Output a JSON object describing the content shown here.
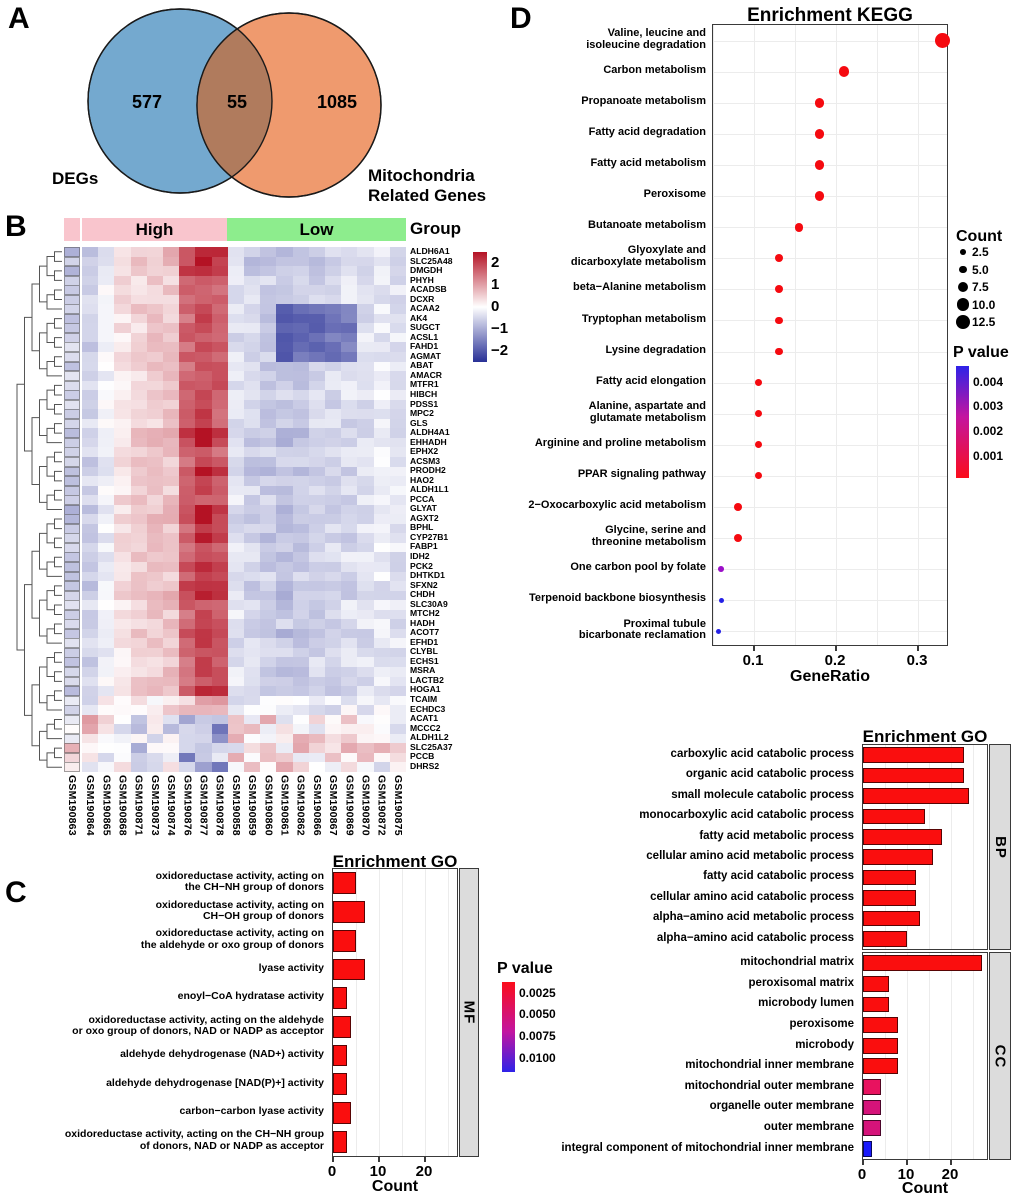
{
  "panel_letters": {
    "a": "A",
    "b": "B",
    "c": "C",
    "d": "D"
  },
  "chart_data": [
    {
      "type": "venn",
      "left_label": "DEGs",
      "right_label": "Mitochondria\nRelated Genes",
      "left_value": "577",
      "overlap_value": "55",
      "right_value": "1085",
      "left_color": "#74A9CF",
      "right_color": "#EF9A6E",
      "overlap_color": "#B07B5D",
      "outline_color": "#1a1a1a"
    },
    {
      "type": "heatmap",
      "group_label": "Group",
      "groups": [
        {
          "name": "High",
          "color": "#F9C5CD",
          "n": 10
        },
        {
          "name": "Low",
          "color": "#8DED8D",
          "n": 11
        }
      ],
      "samples": [
        "GSM190863",
        "GSM190864",
        "GSM190865",
        "GSM190868",
        "GSM190871",
        "GSM190873",
        "GSM190874",
        "GSM190876",
        "GSM190877",
        "GSM190878",
        "GSM190858",
        "GSM190859",
        "GSM190860",
        "GSM190861",
        "GSM190862",
        "GSM190866",
        "GSM190867",
        "GSM190869",
        "GSM190870",
        "GSM190872",
        "GSM190875"
      ],
      "genes": [
        {
          "name": "ALDH6A1",
          "profile": "s"
        },
        {
          "name": "SLC25A48",
          "profile": "s"
        },
        {
          "name": "DMGDH",
          "profile": "s"
        },
        {
          "name": "PHYH",
          "profile": "u"
        },
        {
          "name": "ACADSB",
          "profile": "u"
        },
        {
          "name": "DCXR",
          "profile": "u"
        },
        {
          "name": "ACAA2",
          "profile": "p"
        },
        {
          "name": "AK4",
          "profile": "p"
        },
        {
          "name": "SUGCT",
          "profile": "p"
        },
        {
          "name": "ACSL1",
          "profile": "p"
        },
        {
          "name": "FAHD1",
          "profile": "p"
        },
        {
          "name": "AGMAT",
          "profile": "p"
        },
        {
          "name": "ABAT",
          "profile": "u"
        },
        {
          "name": "AMACR",
          "profile": "u"
        },
        {
          "name": "MTFR1",
          "profile": "u"
        },
        {
          "name": "HIBCH",
          "profile": "u"
        },
        {
          "name": "PDSS1",
          "profile": "u"
        },
        {
          "name": "MPC2",
          "profile": "u"
        },
        {
          "name": "GLS",
          "profile": "u"
        },
        {
          "name": "ALDH4A1",
          "profile": "s"
        },
        {
          "name": "EHHADH",
          "profile": "s"
        },
        {
          "name": "EPHX2",
          "profile": "u"
        },
        {
          "name": "ACSM3",
          "profile": "u"
        },
        {
          "name": "PRODH2",
          "profile": "s"
        },
        {
          "name": "HAO2",
          "profile": "u"
        },
        {
          "name": "ALDH1L1",
          "profile": "u"
        },
        {
          "name": "PCCA",
          "profile": "u"
        },
        {
          "name": "GLYAT",
          "profile": "s"
        },
        {
          "name": "AGXT2",
          "profile": "s"
        },
        {
          "name": "BPHL",
          "profile": "u"
        },
        {
          "name": "CYP27B1",
          "profile": "s"
        },
        {
          "name": "FABP1",
          "profile": "u"
        },
        {
          "name": "IDH2",
          "profile": "u"
        },
        {
          "name": "PCK2",
          "profile": "s"
        },
        {
          "name": "DHTKD1",
          "profile": "u"
        },
        {
          "name": "SFXN2",
          "profile": "s"
        },
        {
          "name": "CHDH",
          "profile": "s"
        },
        {
          "name": "SLC30A9",
          "profile": "u"
        },
        {
          "name": "MTCH2",
          "profile": "u"
        },
        {
          "name": "HADH",
          "profile": "u"
        },
        {
          "name": "ACOT7",
          "profile": "s"
        },
        {
          "name": "EFHD1",
          "profile": "u"
        },
        {
          "name": "CLYBL",
          "profile": "u"
        },
        {
          "name": "ECHS1",
          "profile": "u"
        },
        {
          "name": "MSRA",
          "profile": "u"
        },
        {
          "name": "LACTB2",
          "profile": "u"
        },
        {
          "name": "HOGA1",
          "profile": "s"
        },
        {
          "name": "TCAIM",
          "profile": "m"
        },
        {
          "name": "ECHDC3",
          "profile": "m"
        },
        {
          "name": "ACAT1",
          "profile": "i"
        },
        {
          "name": "MCCC2",
          "profile": "i"
        },
        {
          "name": "ALDH1L2",
          "profile": "i"
        },
        {
          "name": "SLC25A37",
          "profile": "i"
        },
        {
          "name": "PCCB",
          "profile": "i"
        },
        {
          "name": "DHRS2",
          "profile": "i"
        }
      ],
      "render_params": {
        "col_pattern": [
          -0.55,
          -0.5,
          -0.15,
          0.3,
          0.45,
          0.5,
          0.55,
          1.5,
          1.8,
          1.6,
          -0.35,
          -0.5,
          -0.55,
          -0.6,
          -0.55,
          -0.5,
          -0.45,
          -0.4,
          -0.35,
          -0.25,
          -0.3
        ],
        "profile_amp": {
          "u": 1.0,
          "s": 1.25,
          "p": 1.0,
          "m": 0.45,
          "i": -0.6
        },
        "profile_noise": {
          "u": 0.5,
          "s": 0.45,
          "p": 0.5,
          "m": 0.75,
          "i": 1.5
        },
        "patch_cols": [
          13,
          17
        ],
        "patch_delta": -1.15
      },
      "color_scale": {
        "pos_color": "#B41224",
        "neg_color": "#283096",
        "ticks": [
          "2",
          "1",
          "0",
          "−1",
          "−2"
        ]
      }
    },
    {
      "type": "bar",
      "title": "Enrichment GO",
      "facet": "MF",
      "xlabel": "Count",
      "x_ticks": [
        "0",
        "10",
        "20"
      ],
      "xlim": [
        0,
        27.4
      ],
      "categories": [
        "oxidoreductase activity, acting on\nthe CH−NH group of donors",
        "oxidoreductase activity, acting on\nCH−OH group of donors",
        "oxidoreductase activity, acting on\nthe aldehyde or oxo group of donors",
        "lyase activity",
        "enoyl−CoA hydratase activity",
        "oxidoreductase activity, acting on the aldehyde\nor oxo group of donors, NAD or NADP as acceptor",
        "aldehyde dehydrogenase (NAD+) activity",
        "aldehyde dehydrogenase [NAD(P)+] activity",
        "carbon−carbon lyase activity",
        "oxidoreductase activity, acting on the CH−NH group\nof donors, NAD or NADP as acceptor"
      ],
      "values": [
        5,
        7,
        5,
        7,
        3,
        4,
        3,
        3,
        4,
        3
      ],
      "bar_color": "#FA0E0E",
      "legend": {
        "title": "P value",
        "ticks": [
          "0.0025",
          "0.0050",
          "0.0075",
          "0.0100"
        ],
        "gradient_top": "#FB0D1B",
        "gradient_mid": "#C315A0",
        "gradient_bottom": "#2E22E8"
      }
    },
    {
      "type": "dot",
      "title": "Enrichment KEGG",
      "xlabel": "GeneRatio",
      "x_ticks": [
        "0.1",
        "0.2",
        "0.3"
      ],
      "xlim": [
        0.045,
        0.345
      ],
      "categories": [
        "Valine, leucine and\nisoleucine degradation",
        "Carbon metabolism",
        "Propanoate metabolism",
        "Fatty acid degradation",
        "Fatty acid metabolism",
        "Peroxisome",
        "Butanoate metabolism",
        "Glyoxylate and\ndicarboxylate metabolism",
        "beta−Alanine metabolism",
        "Tryptophan metabolism",
        "Lysine degradation",
        "Fatty acid elongation",
        "Alanine, aspartate and\nglutamate metabolism",
        "Arginine and proline metabolism",
        "PPAR signaling pathway",
        "2−Oxocarboxylic acid metabolism",
        "Glycine, serine and\nthreonine metabolism",
        "One carbon pool by folate",
        "Terpenoid backbone biosynthesis",
        "Proximal tubule\nbicarbonate reclamation"
      ],
      "gene_ratio": [
        0.33,
        0.21,
        0.18,
        0.18,
        0.18,
        0.18,
        0.155,
        0.13,
        0.13,
        0.13,
        0.13,
        0.105,
        0.105,
        0.105,
        0.105,
        0.08,
        0.08,
        0.06,
        0.06,
        0.057
      ],
      "count": [
        13,
        8,
        7,
        7,
        7,
        7,
        6,
        5,
        5,
        5,
        5,
        4,
        4,
        4,
        4,
        5,
        5,
        2.5,
        2,
        2
      ],
      "dot_colors": [
        "#F50A10",
        "#F50A10",
        "#F50A10",
        "#F50A10",
        "#F50A10",
        "#F50A10",
        "#F50A10",
        "#F50A10",
        "#F50A10",
        "#F50A10",
        "#F50A10",
        "#F50A10",
        "#F50A10",
        "#F50A10",
        "#F50A10",
        "#F50A10",
        "#F50A10",
        "#9B0FC8",
        "#2420E6",
        "#2420E6"
      ],
      "legend_count": {
        "title": "Count",
        "values": [
          "2.5",
          "5.0",
          "7.5",
          "10.0",
          "12.5"
        ]
      },
      "legend_pvalue": {
        "title": "P value",
        "ticks": [
          "0.004",
          "0.003",
          "0.002",
          "0.001"
        ],
        "gradient_top": "#2E22E8",
        "gradient_mid": "#C315A0",
        "gradient_bottom": "#FB0D1B"
      }
    },
    {
      "type": "bar",
      "title": "Enrichment GO",
      "xlabel": "Count",
      "x_ticks": [
        "0",
        "10",
        "20"
      ],
      "xlim": [
        0,
        28.6
      ],
      "facets": [
        {
          "name": "BP",
          "categories": [
            "carboxylic acid catabolic process",
            "organic acid catabolic process",
            "small molecule catabolic process",
            "monocarboxylic acid catabolic process",
            "fatty acid metabolic process",
            "cellular amino acid metabolic process",
            "fatty acid catabolic process",
            "cellular amino acid catabolic process",
            "alpha−amino acid metabolic process",
            "alpha−amino acid catabolic process"
          ],
          "values": [
            23,
            23,
            24,
            14,
            18,
            16,
            12,
            12,
            13,
            10
          ],
          "colors": [
            "#FA0E0E",
            "#FA0E0E",
            "#FA0E0E",
            "#FA0E0E",
            "#FA0E0E",
            "#FA0E0E",
            "#FA0E0E",
            "#FA0E0E",
            "#FA0E0E",
            "#FA0E0E"
          ]
        },
        {
          "name": "CC",
          "categories": [
            "mitochondrial matrix",
            "peroxisomal matrix",
            "microbody lumen",
            "peroxisome",
            "microbody",
            "mitochondrial inner membrane",
            "mitochondrial outer membrane",
            "organelle outer membrane",
            "outer membrane",
            "integral component of mitochondrial inner membrane"
          ],
          "values": [
            27,
            6,
            6,
            8,
            8,
            8,
            4,
            4,
            4,
            2
          ],
          "colors": [
            "#FA0E0E",
            "#FA0E0E",
            "#FA0E0E",
            "#FA0E0E",
            "#FA0E0E",
            "#FA0E0E",
            "#E8125F",
            "#D5137A",
            "#D5137A",
            "#1A1AFB"
          ]
        }
      ]
    }
  ]
}
